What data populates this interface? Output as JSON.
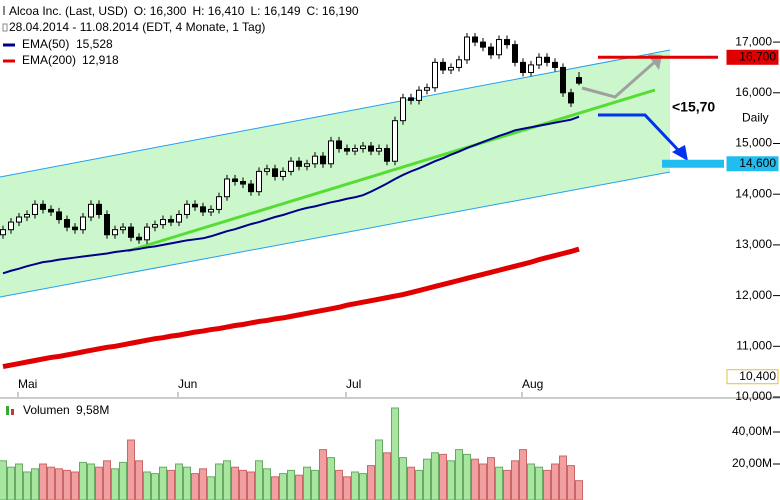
{
  "chart_data": [
    {
      "type": "candlestick",
      "title": "Alcoa Inc. (Last, USD)",
      "ohlc_labels": [
        "O: 16,300",
        "H: 16,410",
        "L: 16,149",
        "C: 16,190"
      ],
      "subtitle": "28.04.2014 - 11.08.2014 (EDT, 4 Monate, 1 Tag)",
      "categories": [
        null,
        null,
        null,
        "Mai",
        null,
        null,
        null,
        null,
        null,
        null,
        null,
        null,
        null,
        null,
        null,
        null,
        null,
        null,
        null,
        null,
        null,
        null,
        null,
        "Jun",
        null,
        null,
        null,
        null,
        null,
        null,
        null,
        null,
        null,
        null,
        null,
        null,
        null,
        null,
        null,
        null,
        null,
        null,
        null,
        null,
        "Jul",
        null,
        null,
        null,
        null,
        null,
        null,
        null,
        null,
        null,
        null,
        null,
        null,
        null,
        null,
        null,
        null,
        null,
        null,
        null,
        null,
        null,
        "Aug",
        null,
        null,
        null,
        null,
        null,
        null
      ],
      "open": [
        13.2,
        13.3,
        13.45,
        13.55,
        13.6,
        13.8,
        13.7,
        13.65,
        13.5,
        13.35,
        13.3,
        13.55,
        13.8,
        13.6,
        13.2,
        13.3,
        13.35,
        13.15,
        13.1,
        13.35,
        13.4,
        13.5,
        13.45,
        13.6,
        13.8,
        13.75,
        13.65,
        13.7,
        13.95,
        14.3,
        14.25,
        14.2,
        14.05,
        14.45,
        14.5,
        14.35,
        14.45,
        14.65,
        14.55,
        14.6,
        14.75,
        14.6,
        15.05,
        14.9,
        14.85,
        14.9,
        14.95,
        14.85,
        14.9,
        14.65,
        15.45,
        15.9,
        15.85,
        16.05,
        16.1,
        16.6,
        16.45,
        16.5,
        16.65,
        17.1,
        17.0,
        16.9,
        16.75,
        17.05,
        16.95,
        16.6,
        16.4,
        16.55,
        16.7,
        16.6,
        16.5,
        16.0,
        16.3
      ],
      "high": [
        13.38,
        13.53,
        13.63,
        13.68,
        13.88,
        13.88,
        13.78,
        13.73,
        13.58,
        13.43,
        13.63,
        13.88,
        13.88,
        13.68,
        13.38,
        13.43,
        13.43,
        13.23,
        13.43,
        13.48,
        13.58,
        13.58,
        13.68,
        13.88,
        13.88,
        13.83,
        13.78,
        14.03,
        14.38,
        14.38,
        14.33,
        14.28,
        14.53,
        14.58,
        14.58,
        14.53,
        14.73,
        14.73,
        14.68,
        14.83,
        14.83,
        15.13,
        15.13,
        14.98,
        14.98,
        15.03,
        15.03,
        14.98,
        14.98,
        15.53,
        15.98,
        15.98,
        16.13,
        16.18,
        16.68,
        16.68,
        16.58,
        16.73,
        17.18,
        17.18,
        17.08,
        16.98,
        17.13,
        17.13,
        17.03,
        16.68,
        16.63,
        16.78,
        16.78,
        16.68,
        16.58,
        16.08,
        16.41
      ],
      "low": [
        13.12,
        13.22,
        13.37,
        13.47,
        13.52,
        13.62,
        13.57,
        13.42,
        13.27,
        13.22,
        13.22,
        13.47,
        13.52,
        13.12,
        13.12,
        13.22,
        13.07,
        13.02,
        13.02,
        13.27,
        13.32,
        13.37,
        13.37,
        13.52,
        13.67,
        13.57,
        13.57,
        13.62,
        13.87,
        14.17,
        14.12,
        13.97,
        13.97,
        14.37,
        14.27,
        14.27,
        14.37,
        14.47,
        14.47,
        14.52,
        14.52,
        14.52,
        14.82,
        14.77,
        14.77,
        14.82,
        14.77,
        14.77,
        14.57,
        14.57,
        15.37,
        15.77,
        15.77,
        15.97,
        16.02,
        16.37,
        16.37,
        16.42,
        16.57,
        16.92,
        16.82,
        16.67,
        16.67,
        16.87,
        16.52,
        16.32,
        16.32,
        16.47,
        16.52,
        16.42,
        15.92,
        15.72,
        16.149
      ],
      "close": [
        13.3,
        13.45,
        13.55,
        13.6,
        13.8,
        13.7,
        13.65,
        13.5,
        13.35,
        13.3,
        13.55,
        13.8,
        13.6,
        13.2,
        13.3,
        13.35,
        13.15,
        13.1,
        13.35,
        13.4,
        13.5,
        13.45,
        13.6,
        13.8,
        13.75,
        13.65,
        13.7,
        13.95,
        14.3,
        14.25,
        14.2,
        14.05,
        14.45,
        14.5,
        14.35,
        14.45,
        14.65,
        14.55,
        14.6,
        14.75,
        14.6,
        15.05,
        14.9,
        14.85,
        14.9,
        14.95,
        14.85,
        14.9,
        14.65,
        15.45,
        15.9,
        15.85,
        16.05,
        16.1,
        16.6,
        16.45,
        16.5,
        16.65,
        17.1,
        17.0,
        16.9,
        16.75,
        17.05,
        16.95,
        16.6,
        16.4,
        16.55,
        16.7,
        16.6,
        16.5,
        16.0,
        15.8,
        16.19
      ],
      "up_color": "#ffffff",
      "down_color": "#000000",
      "series": [
        {
          "name": "EMA(50)",
          "value_label": "15,528",
          "color": "#00008b",
          "values": [
            12.44,
            12.49,
            12.53,
            12.58,
            12.62,
            12.66,
            12.68,
            12.71,
            12.73,
            12.75,
            12.77,
            12.79,
            12.81,
            12.83,
            12.86,
            12.88,
            12.9,
            12.92,
            12.95,
            12.97,
            13.0,
            13.03,
            13.06,
            13.09,
            13.11,
            13.13,
            13.17,
            13.22,
            13.27,
            13.31,
            13.36,
            13.41,
            13.45,
            13.5,
            13.55,
            13.59,
            13.64,
            13.69,
            13.73,
            13.76,
            13.8,
            13.84,
            13.87,
            13.91,
            13.94,
            13.98,
            14.05,
            14.13,
            14.21,
            14.3,
            14.38,
            14.45,
            14.51,
            14.58,
            14.65,
            14.71,
            14.78,
            14.84,
            14.91,
            14.97,
            15.03,
            15.09,
            15.15,
            15.2,
            15.26,
            15.29,
            15.32,
            15.35,
            15.38,
            15.41,
            15.44,
            15.47,
            15.528
          ]
        },
        {
          "name": "EMA(200)",
          "value_label": "12,918",
          "color": "#e00000",
          "values": [
            10.6,
            10.63,
            10.66,
            10.69,
            10.72,
            10.75,
            10.78,
            10.8,
            10.83,
            10.86,
            10.89,
            10.92,
            10.95,
            10.98,
            11.0,
            11.03,
            11.06,
            11.09,
            11.12,
            11.15,
            11.17,
            11.2,
            11.22,
            11.25,
            11.28,
            11.3,
            11.33,
            11.35,
            11.38,
            11.41,
            11.43,
            11.46,
            11.49,
            11.51,
            11.54,
            11.56,
            11.59,
            11.62,
            11.65,
            11.68,
            11.71,
            11.74,
            11.77,
            11.81,
            11.84,
            11.87,
            11.9,
            11.93,
            11.96,
            11.99,
            12.02,
            12.06,
            12.1,
            12.14,
            12.18,
            12.22,
            12.26,
            12.3,
            12.34,
            12.38,
            12.42,
            12.46,
            12.5,
            12.54,
            12.58,
            12.62,
            12.66,
            12.71,
            12.75,
            12.79,
            12.83,
            12.87,
            12.918
          ]
        }
      ],
      "ylim": [
        10,
        17.83
      ],
      "yticks": [
        {
          "value": 10,
          "label": "10,000"
        },
        {
          "value": 11,
          "label": "11,000"
        },
        {
          "value": 12,
          "label": "12,000"
        },
        {
          "value": 13,
          "label": "13,000"
        },
        {
          "value": 14,
          "label": "14,000"
        },
        {
          "value": 15,
          "label": "15,000"
        },
        {
          "value": 16,
          "label": "16,000"
        },
        {
          "value": 17,
          "label": "17,000"
        }
      ],
      "price_markers": [
        {
          "value": 16.7,
          "label": "16,700",
          "color": "#e00000"
        },
        {
          "value": 14.6,
          "label": "14,600",
          "color": "#22bdf0"
        },
        {
          "value": 10.4,
          "label": "10,400",
          "color": "#ffffff"
        }
      ],
      "annotations": [
        {
          "value": 15.7,
          "label": "<15,70"
        },
        {
          "value": 15.5,
          "label": "Daily"
        }
      ]
    },
    {
      "type": "bar",
      "name": "Volumen",
      "value_label": "9,58M",
      "up_color": "#a8e6a0",
      "down_color": "#f0a0a0",
      "values": [
        22,
        18,
        20,
        15,
        17,
        20,
        18,
        17,
        16,
        15,
        21,
        20,
        18,
        22,
        17,
        21,
        35,
        22,
        15,
        14,
        18,
        16,
        20,
        18,
        14,
        17,
        12,
        20,
        22,
        18,
        16,
        15,
        22,
        17,
        12,
        14,
        16,
        13,
        18,
        16,
        29,
        24,
        16,
        12,
        15,
        14,
        19,
        35,
        27,
        55,
        24,
        18,
        16,
        23,
        27,
        26,
        22,
        29,
        26,
        23,
        20,
        24,
        18,
        16,
        22,
        29,
        20,
        18,
        16,
        20,
        25,
        19,
        9.58
      ],
      "ylim": [
        0,
        60
      ],
      "yticks": [
        {
          "value": 20,
          "label": "20,00M"
        },
        {
          "value": 40,
          "label": "40,00M"
        }
      ]
    }
  ]
}
